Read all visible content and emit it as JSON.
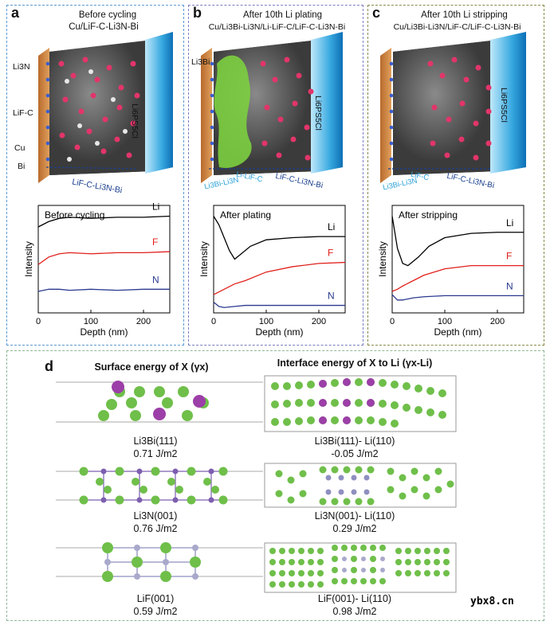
{
  "panels": [
    {
      "letter": "a",
      "title_line1": "Before cycling",
      "title_line2": "Cu/LiF-C-Li3N-Bi",
      "side_labels": [
        "Li3N",
        "LiF-C",
        "Cu",
        "Bi"
      ],
      "electrolyte": "Li6PS5Cl",
      "layers": [
        "LiF-C-Li3N-Bi"
      ],
      "chart_title": "Before cycling"
    },
    {
      "letter": "b",
      "title_line1": "After 10th Li plating",
      "title_line2": "Cu/Li3Bi-Li3N/Li-LiF-C/LiF-C-Li3N-Bi",
      "side_labels": [
        "Li3Bi"
      ],
      "electrolyte": "Li6PS5Cl",
      "layers": [
        "Li3Bi-Li3N",
        "Li-LiF-C",
        "LiF-C-Li3N-Bi"
      ],
      "chart_title": "After plating"
    },
    {
      "letter": "c",
      "title_line1": "After 10th Li stripping",
      "title_line2": "Cu/Li3Bi-Li3N/LiF-C/LiF-C-Li3N-Bi",
      "side_labels": [],
      "electrolyte": "Li6PS5Cl",
      "layers": [
        "Li3Bi-Li3N",
        "LiF-C",
        "LiF-C-Li3N-Bi"
      ],
      "chart_title": "After stripping"
    }
  ],
  "chart_data": [
    {
      "type": "line",
      "title": "Before cycling",
      "xlabel": "Depth (nm)",
      "ylabel": "Intensity",
      "xlim": [
        0,
        250
      ],
      "xticks": [
        "0",
        "100",
        "200"
      ],
      "series": [
        {
          "name": "Li",
          "color": "#000000",
          "x": [
            0,
            20,
            40,
            60,
            100,
            150,
            200,
            250
          ],
          "y": [
            0.8,
            0.85,
            0.88,
            0.89,
            0.88,
            0.89,
            0.89,
            0.9
          ]
        },
        {
          "name": "F",
          "color": "#e0201b",
          "x": [
            0,
            20,
            40,
            60,
            100,
            150,
            200,
            250
          ],
          "y": [
            0.45,
            0.52,
            0.55,
            0.56,
            0.55,
            0.56,
            0.56,
            0.57
          ]
        },
        {
          "name": "N",
          "color": "#2a3a8f",
          "x": [
            0,
            20,
            40,
            60,
            100,
            150,
            200,
            250
          ],
          "y": [
            0.2,
            0.22,
            0.22,
            0.21,
            0.22,
            0.21,
            0.22,
            0.22
          ]
        }
      ]
    },
    {
      "type": "line",
      "title": "After plating",
      "xlabel": "Depth (nm)",
      "ylabel": "Intensity",
      "xlim": [
        0,
        250
      ],
      "xticks": [
        "0",
        "100",
        "200"
      ],
      "series": [
        {
          "name": "Li",
          "color": "#000000",
          "x": [
            0,
            10,
            20,
            30,
            40,
            50,
            70,
            100,
            150,
            200,
            250
          ],
          "y": [
            0.9,
            0.82,
            0.7,
            0.58,
            0.5,
            0.54,
            0.62,
            0.68,
            0.7,
            0.71,
            0.71
          ]
        },
        {
          "name": "F",
          "color": "#e0201b",
          "x": [
            0,
            20,
            40,
            60,
            100,
            150,
            200,
            250
          ],
          "y": [
            0.17,
            0.22,
            0.27,
            0.3,
            0.38,
            0.43,
            0.46,
            0.47
          ]
        },
        {
          "name": "N",
          "color": "#2a3a8f",
          "x": [
            0,
            10,
            20,
            40,
            60,
            100,
            150,
            200,
            250
          ],
          "y": [
            0.1,
            0.06,
            0.05,
            0.06,
            0.07,
            0.07,
            0.07,
            0.07,
            0.07
          ]
        }
      ]
    },
    {
      "type": "line",
      "title": "After stripping",
      "xlabel": "Depth (nm)",
      "ylabel": "Intensity",
      "xlim": [
        0,
        250
      ],
      "xticks": [
        "0",
        "100",
        "200"
      ],
      "series": [
        {
          "name": "Li",
          "color": "#000000",
          "x": [
            0,
            10,
            20,
            30,
            50,
            70,
            100,
            150,
            200,
            250
          ],
          "y": [
            0.9,
            0.6,
            0.46,
            0.44,
            0.52,
            0.62,
            0.7,
            0.74,
            0.75,
            0.75
          ]
        },
        {
          "name": "F",
          "color": "#e0201b",
          "x": [
            0,
            10,
            20,
            40,
            60,
            100,
            150,
            200,
            250
          ],
          "y": [
            0.2,
            0.22,
            0.25,
            0.3,
            0.35,
            0.41,
            0.44,
            0.44,
            0.44
          ]
        },
        {
          "name": "N",
          "color": "#2a3a8f",
          "x": [
            0,
            10,
            20,
            40,
            60,
            100,
            150,
            200,
            250
          ],
          "y": [
            0.17,
            0.12,
            0.12,
            0.14,
            0.15,
            0.16,
            0.16,
            0.16,
            0.16
          ]
        }
      ]
    }
  ],
  "panel_d": {
    "letter": "d",
    "left_header": "Surface energy of X (γx)",
    "right_header": "Interface energy of X to Li (γx-Li)",
    "rows": [
      {
        "surface_name": "Li3Bi(111)",
        "surface_energy": "0.71 J/m2",
        "interface_name": "Li3Bi(111)- Li(110)",
        "interface_energy": "-0.05 J/m2"
      },
      {
        "surface_name": "Li3N(001)",
        "surface_energy": "0.76 J/m2",
        "interface_name": "Li3N(001)- Li(110)",
        "interface_energy": "0.29 J/m2"
      },
      {
        "surface_name": "LiF(001)",
        "surface_energy": "0.59 J/m2",
        "interface_name": "LiF(001)- Li(110)",
        "interface_energy": "0.98 J/m2"
      }
    ]
  },
  "watermark": "ybx8.cn",
  "colors": {
    "li": "#6fbf4a",
    "bi": "#9c3fa8",
    "n": "#8f8fc0",
    "f": "#a9a9cc",
    "panel_a": "#5b9bd5",
    "panel_b": "#7a7ec2",
    "panel_c": "#8a8a4a",
    "panel_d": "#8fb89a"
  }
}
